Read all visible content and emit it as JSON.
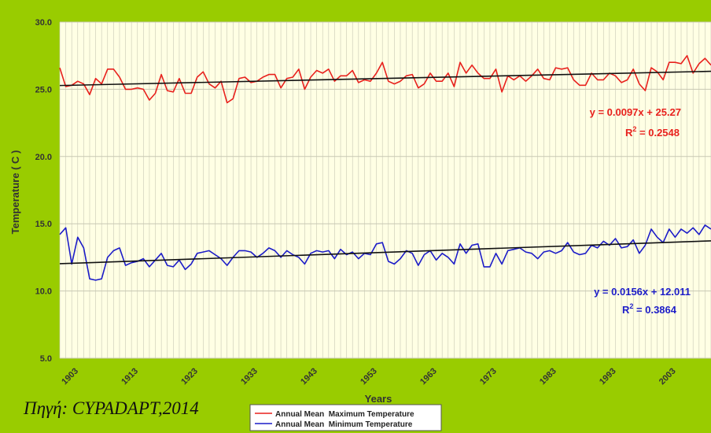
{
  "source_caption": "Πηγή: CYPADAPT,2014",
  "chart_data": {
    "type": "line",
    "title": "",
    "xlabel": "Years",
    "ylabel": "Temperature ( C )",
    "xlim": [
      1900,
      2009
    ],
    "ylim": [
      5.0,
      30.0
    ],
    "y_ticks": [
      "5.0",
      "10.0",
      "15.0",
      "20.0",
      "25.0",
      "30.0"
    ],
    "x_ticks": [
      "1903",
      "1913",
      "1923",
      "1933",
      "1943",
      "1953",
      "1963",
      "1973",
      "1983",
      "1993",
      "2003"
    ],
    "grid": true,
    "legend_position": "bottom",
    "x": [
      1900,
      1901,
      1902,
      1903,
      1904,
      1905,
      1906,
      1907,
      1908,
      1909,
      1910,
      1911,
      1912,
      1913,
      1914,
      1915,
      1916,
      1917,
      1918,
      1919,
      1920,
      1921,
      1922,
      1923,
      1924,
      1925,
      1926,
      1927,
      1928,
      1929,
      1930,
      1931,
      1932,
      1933,
      1934,
      1935,
      1936,
      1937,
      1938,
      1939,
      1940,
      1941,
      1942,
      1943,
      1944,
      1945,
      1946,
      1947,
      1948,
      1949,
      1950,
      1951,
      1952,
      1953,
      1954,
      1955,
      1956,
      1957,
      1958,
      1959,
      1960,
      1961,
      1962,
      1963,
      1964,
      1965,
      1966,
      1967,
      1968,
      1969,
      1970,
      1971,
      1972,
      1973,
      1974,
      1975,
      1976,
      1977,
      1978,
      1979,
      1980,
      1981,
      1982,
      1983,
      1984,
      1985,
      1986,
      1987,
      1988,
      1989,
      1990,
      1991,
      1992,
      1993,
      1994,
      1995,
      1996,
      1997,
      1998,
      1999,
      2000,
      2001,
      2002,
      2003,
      2004,
      2005,
      2006,
      2007,
      2008,
      2009
    ],
    "series": [
      {
        "name": "Annual Mean  Maximum Temperature",
        "color": "#e8211d",
        "values": [
          26.6,
          25.2,
          25.3,
          25.6,
          25.4,
          24.6,
          25.8,
          25.4,
          26.5,
          26.5,
          25.9,
          25.0,
          25.0,
          25.1,
          25.0,
          24.2,
          24.7,
          26.1,
          24.9,
          24.8,
          25.8,
          24.7,
          24.7,
          25.9,
          26.3,
          25.4,
          25.1,
          25.6,
          24.0,
          24.3,
          25.8,
          25.9,
          25.5,
          25.6,
          25.9,
          26.1,
          26.1,
          25.1,
          25.8,
          25.9,
          26.5,
          25.0,
          25.9,
          26.4,
          26.2,
          26.5,
          25.6,
          26.0,
          26.0,
          26.4,
          25.5,
          25.7,
          25.6,
          26.2,
          27.0,
          25.6,
          25.4,
          25.6,
          26.0,
          26.1,
          25.1,
          25.4,
          26.2,
          25.6,
          25.6,
          26.2,
          25.2,
          27.0,
          26.2,
          26.8,
          26.2,
          25.8,
          25.8,
          26.5,
          24.8,
          26.0,
          25.7,
          26.0,
          25.6,
          26.0,
          26.5,
          25.8,
          25.7,
          26.6,
          26.5,
          26.6,
          25.7,
          25.3,
          25.3,
          26.2,
          25.7,
          25.7,
          26.2,
          26.0,
          25.5,
          25.7,
          26.5,
          25.4,
          24.9,
          26.6,
          26.3,
          25.7,
          27.0,
          27.0,
          26.9,
          27.5,
          26.2,
          26.9,
          27.3,
          26.8
        ]
      },
      {
        "name": "Annual Mean  Minimum Temperature",
        "color": "#1c1cc8",
        "values": [
          14.2,
          14.7,
          12.0,
          14.0,
          13.2,
          10.9,
          10.8,
          10.9,
          12.5,
          13.0,
          13.2,
          11.9,
          12.1,
          12.2,
          12.4,
          11.8,
          12.3,
          12.8,
          11.9,
          11.8,
          12.3,
          11.6,
          12.0,
          12.8,
          12.9,
          13.0,
          12.7,
          12.4,
          11.9,
          12.5,
          13.0,
          13.0,
          12.9,
          12.5,
          12.8,
          13.2,
          13.0,
          12.5,
          13.0,
          12.7,
          12.5,
          12.0,
          12.8,
          13.0,
          12.9,
          13.0,
          12.4,
          13.1,
          12.7,
          12.9,
          12.4,
          12.8,
          12.7,
          13.5,
          13.6,
          12.2,
          12.0,
          12.4,
          13.0,
          12.8,
          11.9,
          12.7,
          13.0,
          12.3,
          12.8,
          12.5,
          12.0,
          13.5,
          12.8,
          13.4,
          13.5,
          11.8,
          11.8,
          12.8,
          12.0,
          13.0,
          13.1,
          13.2,
          12.9,
          12.8,
          12.4,
          12.9,
          13.0,
          12.8,
          13.0,
          13.6,
          12.9,
          12.7,
          12.8,
          13.4,
          13.2,
          13.7,
          13.4,
          13.9,
          13.2,
          13.3,
          13.8,
          12.8,
          13.4,
          14.6,
          14.0,
          13.6,
          14.6,
          14.0,
          14.6,
          14.3,
          14.7,
          14.2,
          14.9,
          14.6
        ]
      }
    ],
    "trendlines": [
      {
        "series": "Annual Mean  Maximum Temperature",
        "equation": "y = 0.0097x + 25.27",
        "r2_prefix": "R",
        "r2_sup": "2",
        "r2_value": " = 0.2548",
        "slope": 0.0097,
        "intercept": 25.27
      },
      {
        "series": "Annual Mean  Minimum Temperature",
        "equation": "y = 0.0156x + 12.011",
        "r2_prefix": "R",
        "r2_sup": "2",
        "r2_value": " = 0.3864",
        "slope": 0.0156,
        "intercept": 12.011
      }
    ],
    "colors": {
      "frame": "#99cc00",
      "plot_background": "#ffffe4",
      "grid": "#c8c8b4",
      "trendline": "#111111"
    }
  }
}
